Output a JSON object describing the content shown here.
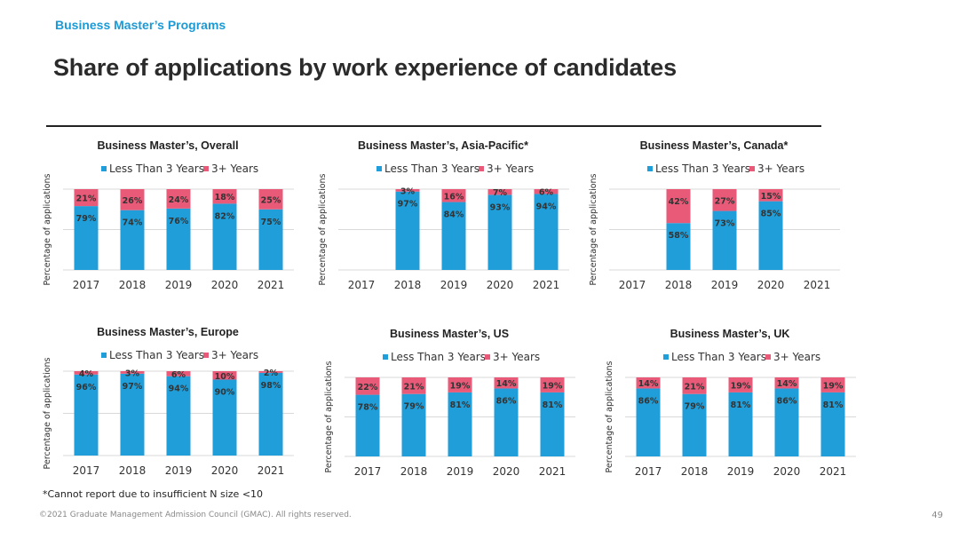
{
  "header": {
    "eyebrow": "Business Master’s Programs",
    "title": "Share of applications by work experience of candidates"
  },
  "footer": {
    "footnote": "*Cannot report due to insufficient N size <10",
    "copyright": "©2021 Graduate Management Admission Council (GMAC). All rights reserved.",
    "page_number": "49"
  },
  "colors": {
    "less": "#1f9ed9",
    "more": "#e85a78",
    "grid": "#d9d9d9"
  },
  "chart_data": [
    {
      "type": "bar",
      "stacked": true,
      "title": "Business Master’s, Overall",
      "ylabel": "Percentage of applications",
      "ylim": [
        0,
        100
      ],
      "legend_position": "top",
      "categories": [
        "2017",
        "2018",
        "2019",
        "2020",
        "2021"
      ],
      "series": [
        {
          "name": "Less Than 3 Years",
          "values": [
            79,
            74,
            76,
            82,
            75
          ]
        },
        {
          "name": "3+ Years",
          "values": [
            21,
            26,
            24,
            18,
            25
          ]
        }
      ]
    },
    {
      "type": "bar",
      "stacked": true,
      "title": "Business Master’s, Asia-Pacific*",
      "ylabel": "Percentage of applications",
      "ylim": [
        0,
        100
      ],
      "legend_position": "top",
      "categories": [
        "2017",
        "2018",
        "2019",
        "2020",
        "2021"
      ],
      "series": [
        {
          "name": "Less Than 3 Years",
          "values": [
            null,
            97,
            84,
            93,
            94
          ]
        },
        {
          "name": "3+ Years",
          "values": [
            null,
            3,
            16,
            7,
            6
          ]
        }
      ]
    },
    {
      "type": "bar",
      "stacked": true,
      "title": "Business Master’s, Canada*",
      "ylabel": "Percentage of applications",
      "ylim": [
        0,
        100
      ],
      "legend_position": "top",
      "categories": [
        "2017",
        "2018",
        "2019",
        "2020",
        "2021"
      ],
      "series": [
        {
          "name": "Less Than 3 Years",
          "values": [
            null,
            58,
            73,
            85,
            null
          ]
        },
        {
          "name": "3+ Years",
          "values": [
            null,
            42,
            27,
            15,
            null
          ]
        }
      ]
    },
    {
      "type": "bar",
      "stacked": true,
      "title": "Business Master’s, Europe",
      "ylabel": "Percentage of applications",
      "ylim": [
        0,
        100
      ],
      "legend_position": "top",
      "categories": [
        "2017",
        "2018",
        "2019",
        "2020",
        "2021"
      ],
      "series": [
        {
          "name": "Less Than 3 Years",
          "values": [
            96,
            97,
            94,
            90,
            98
          ]
        },
        {
          "name": "3+ Years",
          "values": [
            4,
            3,
            6,
            10,
            2
          ]
        }
      ]
    },
    {
      "type": "bar",
      "stacked": true,
      "title": "Business Master’s, US",
      "ylabel": "Percentage of applications",
      "ylim": [
        0,
        100
      ],
      "legend_position": "top",
      "categories": [
        "2017",
        "2018",
        "2019",
        "2020",
        "2021"
      ],
      "series": [
        {
          "name": "Less Than 3 Years",
          "values": [
            78,
            79,
            81,
            86,
            81
          ]
        },
        {
          "name": "3+ Years",
          "values": [
            22,
            21,
            19,
            14,
            19
          ]
        }
      ]
    },
    {
      "type": "bar",
      "stacked": true,
      "title": "Business Master’s, UK",
      "ylabel": "Percentage of applications",
      "ylim": [
        0,
        100
      ],
      "legend_position": "top",
      "categories": [
        "2017",
        "2018",
        "2019",
        "2020",
        "2021"
      ],
      "series": [
        {
          "name": "Less Than 3 Years",
          "values": [
            86,
            79,
            81,
            86,
            81
          ]
        },
        {
          "name": "3+ Years",
          "values": [
            14,
            21,
            19,
            14,
            19
          ]
        }
      ]
    }
  ]
}
